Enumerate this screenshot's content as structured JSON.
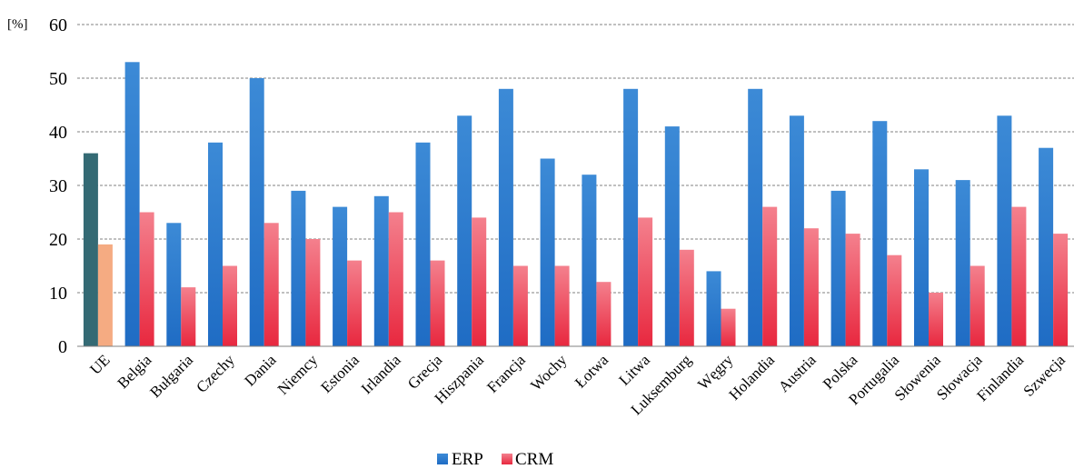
{
  "chart_data": {
    "type": "bar",
    "unit_label": "[%]",
    "categories": [
      "UE",
      "Belgia",
      "Bułgaria",
      "Czechy",
      "Dania",
      "Niemcy",
      "Estonia",
      "Irlandia",
      "Grecja",
      "Hiszpania",
      "Francja",
      "Wochy",
      "Łotwa",
      "Litwa",
      "Luksemburg",
      "Węgry",
      "Holandia",
      "Austria",
      "Polska",
      "Portugalia",
      "Słowenia",
      "Słowacja",
      "Finlandia",
      "Szwecja"
    ],
    "series": [
      {
        "name": "ERP",
        "values": [
          36,
          53,
          23,
          38,
          50,
          29,
          26,
          28,
          38,
          43,
          48,
          35,
          32,
          48,
          41,
          14,
          48,
          43,
          29,
          42,
          33,
          31,
          43,
          37
        ]
      },
      {
        "name": "CRM",
        "values": [
          19,
          25,
          11,
          15,
          23,
          20,
          16,
          25,
          16,
          24,
          15,
          15,
          12,
          24,
          18,
          7,
          26,
          22,
          21,
          17,
          10,
          15,
          26,
          21
        ]
      }
    ],
    "ylim": [
      0,
      60
    ],
    "yticks": [
      0,
      10,
      20,
      30,
      40,
      50,
      60
    ],
    "grid": "dashed horizontal",
    "legend_position": "bottom",
    "colors": {
      "ERP": "#2f7fd0",
      "CRM": "#ee4055",
      "ERP_highlight": "#346a74",
      "CRM_highlight": "#f5ab82"
    }
  }
}
